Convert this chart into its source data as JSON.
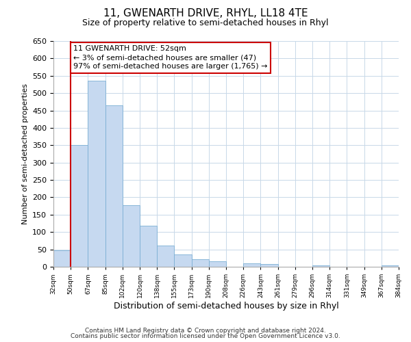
{
  "title": "11, GWENARTH DRIVE, RHYL, LL18 4TE",
  "subtitle": "Size of property relative to semi-detached houses in Rhyl",
  "xlabel": "Distribution of semi-detached houses by size in Rhyl",
  "ylabel": "Number of semi-detached properties",
  "bar_color": "#c6d9f0",
  "bar_edge_color": "#7bafd4",
  "annotation_box_color": "#ffffff",
  "annotation_box_edge": "#cc0000",
  "property_line_color": "#cc0000",
  "footer_line1": "Contains HM Land Registry data © Crown copyright and database right 2024.",
  "footer_line2": "Contains public sector information licensed under the Open Government Licence v3.0.",
  "bin_labels": [
    "32sqm",
    "50sqm",
    "67sqm",
    "85sqm",
    "102sqm",
    "120sqm",
    "138sqm",
    "155sqm",
    "173sqm",
    "190sqm",
    "208sqm",
    "226sqm",
    "243sqm",
    "261sqm",
    "279sqm",
    "296sqm",
    "314sqm",
    "331sqm",
    "349sqm",
    "367sqm",
    "384sqm"
  ],
  "bar_heights": [
    47,
    350,
    535,
    465,
    178,
    118,
    62,
    36,
    22,
    15,
    0,
    10,
    8,
    0,
    0,
    3,
    0,
    0,
    0,
    3,
    0
  ],
  "ylim": [
    0,
    650
  ],
  "yticks": [
    0,
    50,
    100,
    150,
    200,
    250,
    300,
    350,
    400,
    450,
    500,
    550,
    600,
    650
  ],
  "property_bin_index": 1,
  "annotation_title": "11 GWENARTH DRIVE: 52sqm",
  "annotation_line1": "← 3% of semi-detached houses are smaller (47)",
  "annotation_line2": "97% of semi-detached houses are larger (1,765) →",
  "background_color": "#ffffff",
  "grid_color": "#c8d8e8"
}
